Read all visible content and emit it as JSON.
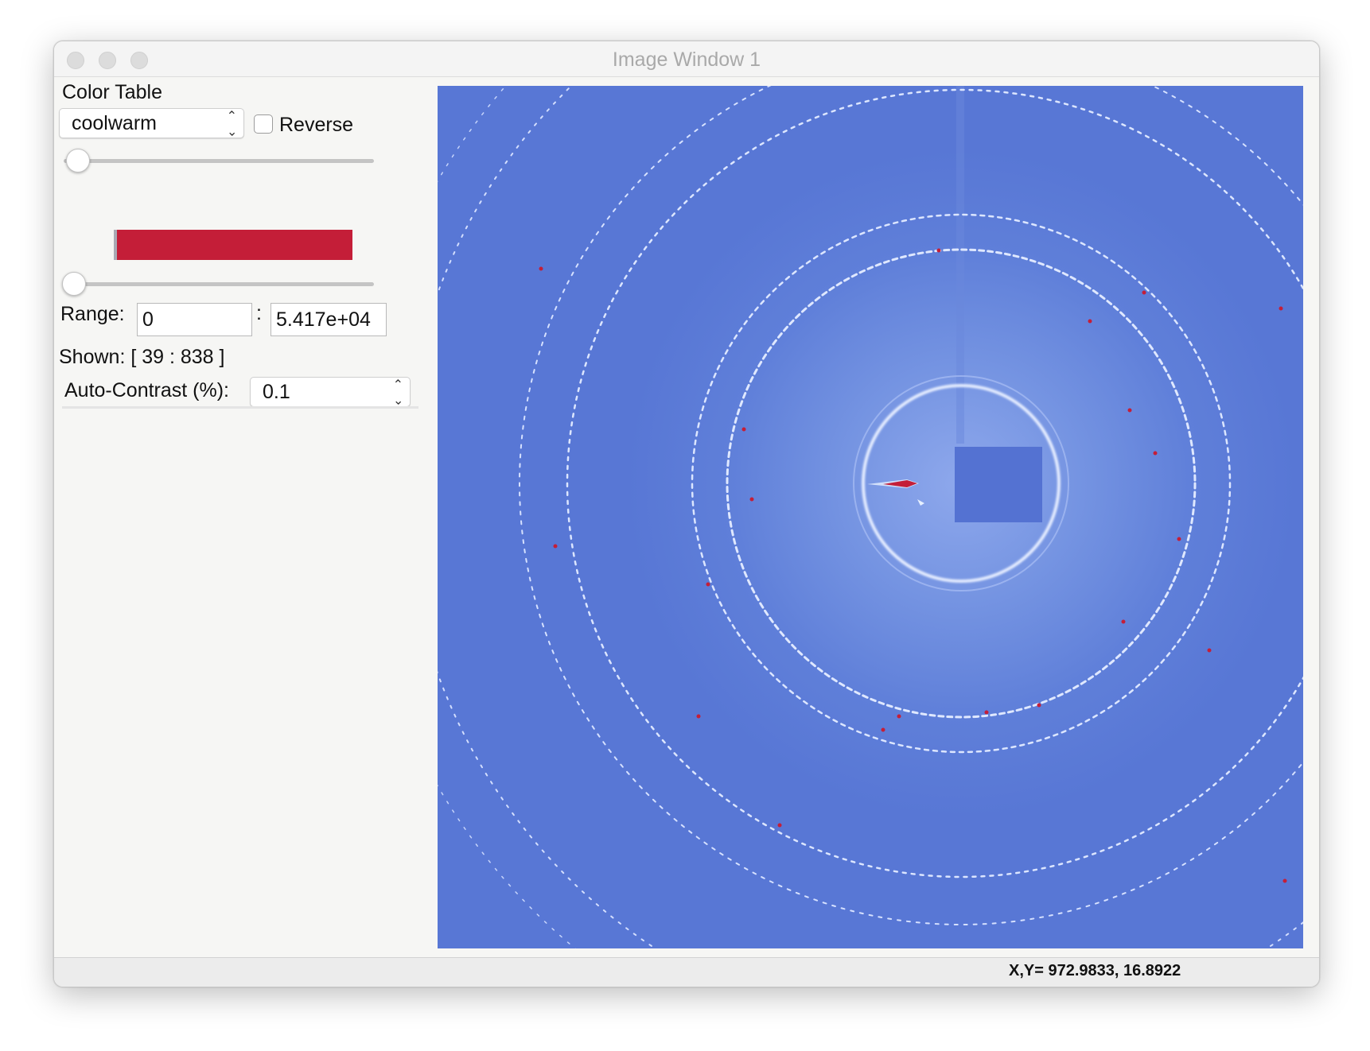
{
  "window": {
    "title": "Image Window 1"
  },
  "color_table": {
    "label": "Color Table",
    "selected": "coolwarm",
    "reverse_label": "Reverse",
    "reverse_checked": false,
    "colorbar_color": "#c41e38"
  },
  "range": {
    "label": "Range:",
    "min": "0",
    "separator": ":",
    "max": "5.417e+04"
  },
  "shown": {
    "text": "Shown: [ 39 :  838 ]"
  },
  "auto_contrast": {
    "label": "Auto-Contrast (%):",
    "value": "0.1"
  },
  "image": {
    "colormap": "coolwarm",
    "background_color": "#5877d5",
    "description_rings": 7
  },
  "status": {
    "coords": "X,Y= 972.9833, 16.8922"
  },
  "icons": {
    "close": "close-icon",
    "minimize": "minimize-icon",
    "zoom": "zoom-icon",
    "select_stepper": "chevron-updown-icon"
  }
}
